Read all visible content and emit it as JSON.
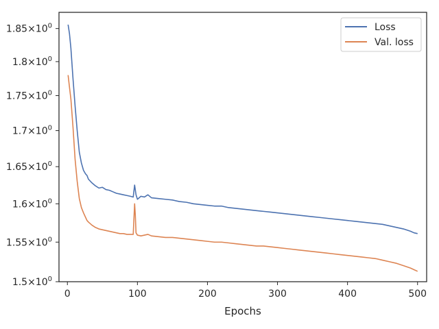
{
  "chart_data": {
    "type": "line",
    "title": "",
    "xlabel": "Epochs",
    "ylabel": "",
    "xlim": [
      -12,
      513
    ],
    "ylim": [
      1.5,
      1.875
    ],
    "yscale": "log",
    "grid": false,
    "legend_position": "top-right",
    "x_ticks": [
      {
        "value": 0,
        "label": "0"
      },
      {
        "value": 100,
        "label": "100"
      },
      {
        "value": 200,
        "label": "200"
      },
      {
        "value": 300,
        "label": "300"
      },
      {
        "value": 400,
        "label": "400"
      },
      {
        "value": 500,
        "label": "500"
      }
    ],
    "y_ticks": [
      {
        "value": 1.5,
        "base": "1.5",
        "sup": "0"
      },
      {
        "value": 1.55,
        "base": "1.55",
        "sup": "0"
      },
      {
        "value": 1.6,
        "base": "1.6",
        "sup": "0"
      },
      {
        "value": 1.65,
        "base": "1.65",
        "sup": "0"
      },
      {
        "value": 1.7,
        "base": "1.7",
        "sup": "0"
      },
      {
        "value": 1.75,
        "base": "1.75",
        "sup": "0"
      },
      {
        "value": 1.8,
        "base": "1.8",
        "sup": "0"
      },
      {
        "value": 1.85,
        "base": "1.85",
        "sup": "0"
      }
    ],
    "series": [
      {
        "name": "Loss",
        "color": "#4c72b0",
        "x": [
          1,
          3,
          5,
          8,
          11,
          14,
          17,
          20,
          23,
          26,
          28,
          30,
          35,
          40,
          45,
          50,
          55,
          60,
          65,
          70,
          75,
          80,
          85,
          90,
          94,
          96,
          98,
          100,
          105,
          110,
          115,
          120,
          130,
          140,
          150,
          160,
          170,
          180,
          190,
          200,
          210,
          220,
          230,
          240,
          250,
          260,
          270,
          280,
          290,
          300,
          310,
          320,
          330,
          340,
          350,
          360,
          370,
          380,
          390,
          400,
          410,
          420,
          430,
          440,
          450,
          460,
          470,
          480,
          490,
          495,
          500
        ],
        "y": [
          1.856,
          1.842,
          1.82,
          1.775,
          1.735,
          1.7,
          1.67,
          1.655,
          1.645,
          1.64,
          1.638,
          1.633,
          1.628,
          1.624,
          1.621,
          1.622,
          1.619,
          1.618,
          1.616,
          1.614,
          1.613,
          1.612,
          1.611,
          1.61,
          1.609,
          1.625,
          1.612,
          1.606,
          1.61,
          1.609,
          1.612,
          1.608,
          1.607,
          1.606,
          1.605,
          1.603,
          1.602,
          1.6,
          1.599,
          1.598,
          1.597,
          1.597,
          1.595,
          1.594,
          1.593,
          1.592,
          1.591,
          1.59,
          1.589,
          1.588,
          1.587,
          1.586,
          1.585,
          1.584,
          1.583,
          1.582,
          1.581,
          1.58,
          1.579,
          1.578,
          1.577,
          1.576,
          1.575,
          1.574,
          1.573,
          1.571,
          1.569,
          1.567,
          1.564,
          1.562,
          1.561
        ]
      },
      {
        "name": "Val. loss",
        "color": "#dd8452",
        "x": [
          1,
          3,
          5,
          8,
          11,
          14,
          17,
          20,
          23,
          26,
          28,
          30,
          35,
          40,
          45,
          50,
          55,
          60,
          65,
          70,
          75,
          80,
          85,
          90,
          94,
          96,
          97,
          98,
          100,
          105,
          110,
          115,
          120,
          130,
          140,
          150,
          160,
          170,
          180,
          190,
          200,
          210,
          220,
          230,
          240,
          250,
          260,
          270,
          280,
          290,
          300,
          310,
          320,
          330,
          340,
          350,
          360,
          370,
          380,
          390,
          400,
          410,
          420,
          430,
          440,
          450,
          460,
          470,
          480,
          490,
          495,
          500
        ],
        "y": [
          1.78,
          1.762,
          1.745,
          1.705,
          1.66,
          1.63,
          1.607,
          1.595,
          1.588,
          1.582,
          1.578,
          1.576,
          1.572,
          1.569,
          1.567,
          1.566,
          1.565,
          1.564,
          1.563,
          1.562,
          1.561,
          1.561,
          1.56,
          1.56,
          1.56,
          1.6,
          1.585,
          1.562,
          1.559,
          1.558,
          1.559,
          1.56,
          1.558,
          1.557,
          1.556,
          1.556,
          1.555,
          1.554,
          1.553,
          1.552,
          1.551,
          1.55,
          1.55,
          1.549,
          1.548,
          1.547,
          1.546,
          1.545,
          1.545,
          1.544,
          1.543,
          1.542,
          1.541,
          1.54,
          1.539,
          1.538,
          1.537,
          1.536,
          1.535,
          1.534,
          1.533,
          1.532,
          1.531,
          1.53,
          1.529,
          1.527,
          1.525,
          1.523,
          1.52,
          1.517,
          1.515,
          1.513
        ]
      }
    ]
  }
}
